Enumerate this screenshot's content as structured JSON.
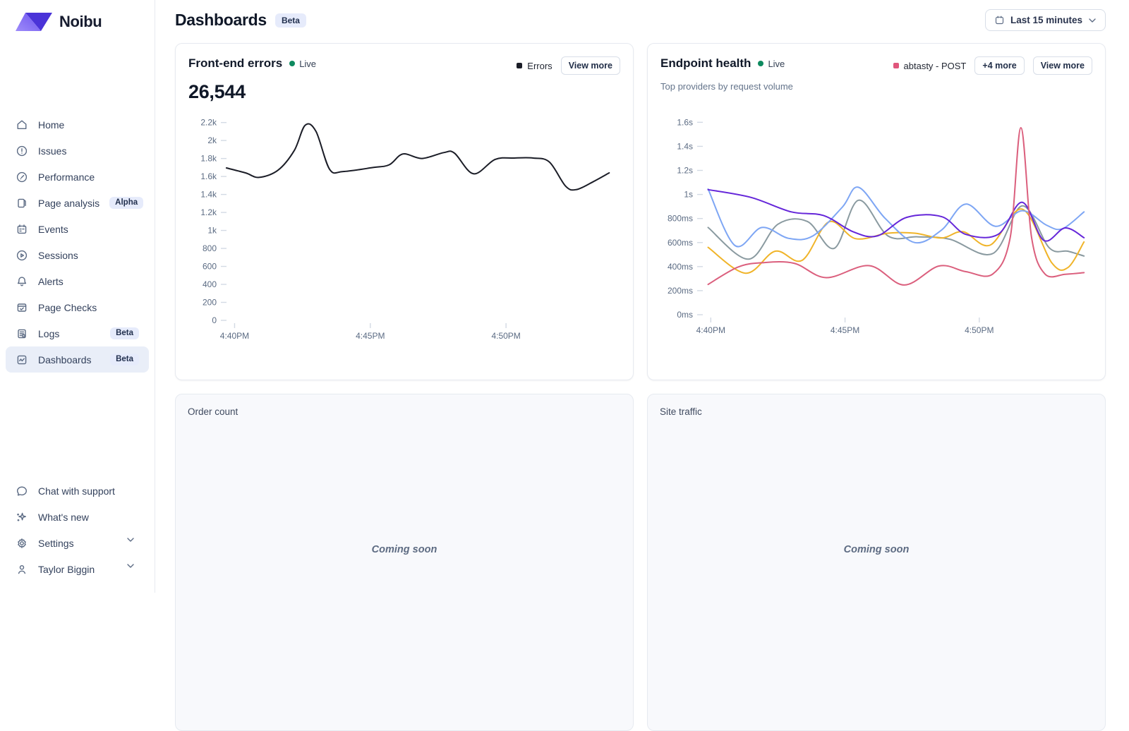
{
  "brand": {
    "name": "Noibu"
  },
  "header": {
    "title": "Dashboards",
    "badge": "Beta",
    "time_range": "Last 15 minutes"
  },
  "sidebar": {
    "items": [
      {
        "label": "Home",
        "icon": "home-icon"
      },
      {
        "label": "Issues",
        "icon": "alert-circle-icon"
      },
      {
        "label": "Performance",
        "icon": "gauge-icon"
      },
      {
        "label": "Page analysis",
        "icon": "pages-icon",
        "badge": "Alpha"
      },
      {
        "label": "Events",
        "icon": "calendar-icon"
      },
      {
        "label": "Sessions",
        "icon": "play-circle-icon"
      },
      {
        "label": "Alerts",
        "icon": "bell-icon"
      },
      {
        "label": "Page Checks",
        "icon": "browser-check-icon"
      },
      {
        "label": "Logs",
        "icon": "logs-icon",
        "badge": "Beta"
      },
      {
        "label": "Dashboards",
        "icon": "dashboard-icon",
        "badge": "Beta",
        "selected": true
      }
    ],
    "footer_items": [
      {
        "label": "Chat with support",
        "icon": "chat-icon"
      },
      {
        "label": "What's new",
        "icon": "sparkle-icon"
      },
      {
        "label": "Settings",
        "icon": "gear-icon",
        "chevron": true
      },
      {
        "label": "Taylor Biggin",
        "icon": "user-icon",
        "chevron": true
      }
    ]
  },
  "cards": {
    "front_end_errors": {
      "title": "Front-end errors",
      "live": "Live",
      "value": "26,544",
      "legend": "Errors",
      "view_more": "View more"
    },
    "endpoint_health": {
      "title": "Endpoint health",
      "live": "Live",
      "subtitle": "Top providers by request volume",
      "legend": "abtasty - POST",
      "more_button": "+4 more",
      "view_more": "View more"
    },
    "order_count": {
      "title": "Order count",
      "placeholder": "Coming soon"
    },
    "site_traffic": {
      "title": "Site traffic",
      "placeholder": "Coming soon"
    }
  },
  "colors": {
    "brand_dark": "#4a33d8",
    "brand_light": "#8f7bf7",
    "live_green": "#0e8a5f",
    "legend_pink": "#e0567c",
    "errors_line": "#1b1d27",
    "selected_nav_bg": "#e9eef8",
    "badge_bg": "#e6ebfb"
  },
  "chart_data": [
    {
      "type": "line",
      "title": "Front-end errors",
      "total": 26544,
      "xlabel": "",
      "ylabel": "",
      "x_unit": "minutes after 4:40PM",
      "xlim": [
        -0.35,
        14.0
      ],
      "x_ticks": [
        [
          0,
          "4:40PM"
        ],
        [
          5,
          "4:45PM"
        ],
        [
          10,
          "4:50PM"
        ]
      ],
      "ylim": [
        0,
        2260
      ],
      "y_ticks": [
        [
          0,
          "0"
        ],
        [
          200,
          "200"
        ],
        [
          400,
          "400"
        ],
        [
          600,
          "600"
        ],
        [
          800,
          "800"
        ],
        [
          1000,
          "1k"
        ],
        [
          1200,
          "1.2k"
        ],
        [
          1400,
          "1.4k"
        ],
        [
          1600,
          "1.6k"
        ],
        [
          1800,
          "1.8k"
        ],
        [
          2000,
          "2k"
        ],
        [
          2200,
          "2.2k"
        ]
      ],
      "grid": false,
      "legend_position": "top-right",
      "series": [
        {
          "name": "Errors",
          "color": "#1b1d27",
          "points": [
            [
              -0.3,
              1695
            ],
            [
              0.4,
              1640
            ],
            [
              0.9,
              1590
            ],
            [
              1.6,
              1670
            ],
            [
              2.2,
              1890
            ],
            [
              2.6,
              2170
            ],
            [
              3.0,
              2100
            ],
            [
              3.5,
              1680
            ],
            [
              4.0,
              1655
            ],
            [
              5.1,
              1700
            ],
            [
              5.7,
              1730
            ],
            [
              6.2,
              1850
            ],
            [
              6.9,
              1800
            ],
            [
              7.7,
              1865
            ],
            [
              8.1,
              1860
            ],
            [
              8.8,
              1630
            ],
            [
              9.6,
              1790
            ],
            [
              10.3,
              1805
            ],
            [
              11.0,
              1805
            ],
            [
              11.6,
              1760
            ],
            [
              12.2,
              1490
            ],
            [
              12.6,
              1455
            ],
            [
              13.2,
              1540
            ],
            [
              13.8,
              1640
            ]
          ]
        }
      ]
    },
    {
      "type": "line",
      "title": "Endpoint health",
      "subtitle": "Top providers by request volume",
      "xlabel": "",
      "ylabel": "",
      "x_unit": "minutes after 4:40PM",
      "xlim": [
        -0.35,
        14.0
      ],
      "x_ticks": [
        [
          0,
          "4:40PM"
        ],
        [
          5,
          "4:45PM"
        ],
        [
          10,
          "4:50PM"
        ]
      ],
      "ylim": [
        0,
        1690
      ],
      "y_ticks": [
        [
          0,
          "0ms"
        ],
        [
          200,
          "200ms"
        ],
        [
          400,
          "400ms"
        ],
        [
          600,
          "600ms"
        ],
        [
          800,
          "800ms"
        ],
        [
          1000,
          "1s"
        ],
        [
          1200,
          "1.2s"
        ],
        [
          1400,
          "1.4s"
        ],
        [
          1600,
          "1.6s"
        ]
      ],
      "grid": false,
      "legend_position": "top-right",
      "series": [
        {
          "name": "",
          "color": "#8a9aa0",
          "points": [
            [
              -0.1,
              725
            ],
            [
              1.4,
              462
            ],
            [
              2.5,
              752
            ],
            [
              3.6,
              775
            ],
            [
              4.6,
              552
            ],
            [
              5.5,
              952
            ],
            [
              6.6,
              655
            ],
            [
              7.7,
              648
            ],
            [
              8.9,
              628
            ],
            [
              10.5,
              508
            ],
            [
              11.6,
              905
            ],
            [
              12.6,
              558
            ],
            [
              13.3,
              528
            ],
            [
              13.9,
              488
            ]
          ]
        },
        {
          "name": "",
          "color": "#f0b429",
          "points": [
            [
              -0.1,
              560
            ],
            [
              1.3,
              345
            ],
            [
              2.4,
              528
            ],
            [
              3.4,
              452
            ],
            [
              4.4,
              772
            ],
            [
              5.4,
              632
            ],
            [
              6.6,
              678
            ],
            [
              7.6,
              678
            ],
            [
              8.6,
              638
            ],
            [
              9.4,
              690
            ],
            [
              10.4,
              578
            ],
            [
              11.6,
              878
            ],
            [
              12.7,
              432
            ],
            [
              13.3,
              392
            ],
            [
              13.9,
              605
            ]
          ]
        },
        {
          "name": "",
          "color": "#7ea6f4",
          "points": [
            [
              -0.1,
              1045
            ],
            [
              0.9,
              575
            ],
            [
              1.9,
              725
            ],
            [
              2.9,
              635
            ],
            [
              3.8,
              655
            ],
            [
              4.9,
              895
            ],
            [
              5.5,
              1060
            ],
            [
              6.5,
              800
            ],
            [
              7.6,
              600
            ],
            [
              8.6,
              705
            ],
            [
              9.5,
              920
            ],
            [
              10.6,
              735
            ],
            [
              11.6,
              865
            ],
            [
              12.5,
              745
            ],
            [
              13.1,
              715
            ],
            [
              13.9,
              855
            ]
          ]
        },
        {
          "name": "",
          "color": "#6526d9",
          "points": [
            [
              -0.1,
              1040
            ],
            [
              1.5,
              975
            ],
            [
              3.0,
              855
            ],
            [
              4.2,
              825
            ],
            [
              5.3,
              690
            ],
            [
              6.2,
              655
            ],
            [
              7.3,
              810
            ],
            [
              8.6,
              815
            ],
            [
              9.5,
              668
            ],
            [
              10.7,
              668
            ],
            [
              11.6,
              935
            ],
            [
              12.4,
              618
            ],
            [
              13.2,
              722
            ],
            [
              13.9,
              640
            ]
          ]
        },
        {
          "name": "abtasty - POST",
          "color": "#db5f7d",
          "points": [
            [
              -0.1,
              252
            ],
            [
              1.0,
              395
            ],
            [
              1.9,
              432
            ],
            [
              3.1,
              428
            ],
            [
              4.3,
              308
            ],
            [
              5.9,
              408
            ],
            [
              7.2,
              247
            ],
            [
              8.5,
              405
            ],
            [
              9.5,
              358
            ],
            [
              10.5,
              338
            ],
            [
              11.15,
              640
            ],
            [
              11.55,
              1555
            ],
            [
              11.95,
              640
            ],
            [
              12.45,
              338
            ],
            [
              13.2,
              336
            ],
            [
              13.9,
              350
            ]
          ]
        }
      ]
    }
  ]
}
